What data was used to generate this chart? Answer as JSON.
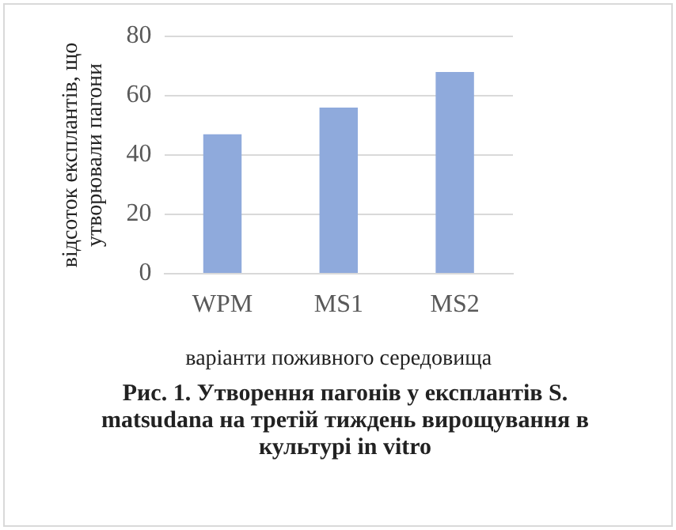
{
  "chart_data": {
    "type": "bar",
    "title": "Рис. 1. Утворення пагонів у експлантів S. matsudana на третій тиждень вирощування в культурі in vitro",
    "xlabel": "варіанти поживного середовища",
    "ylabel": "відсоток експлантів, що утворювали пагони",
    "categories": [
      "WPM",
      "MS1",
      "MS2"
    ],
    "values": [
      47,
      56,
      68
    ],
    "color": "#8faadc",
    "ylim": [
      0,
      80
    ],
    "yticks": [
      0,
      20,
      40,
      60,
      80
    ],
    "grid": "y"
  }
}
